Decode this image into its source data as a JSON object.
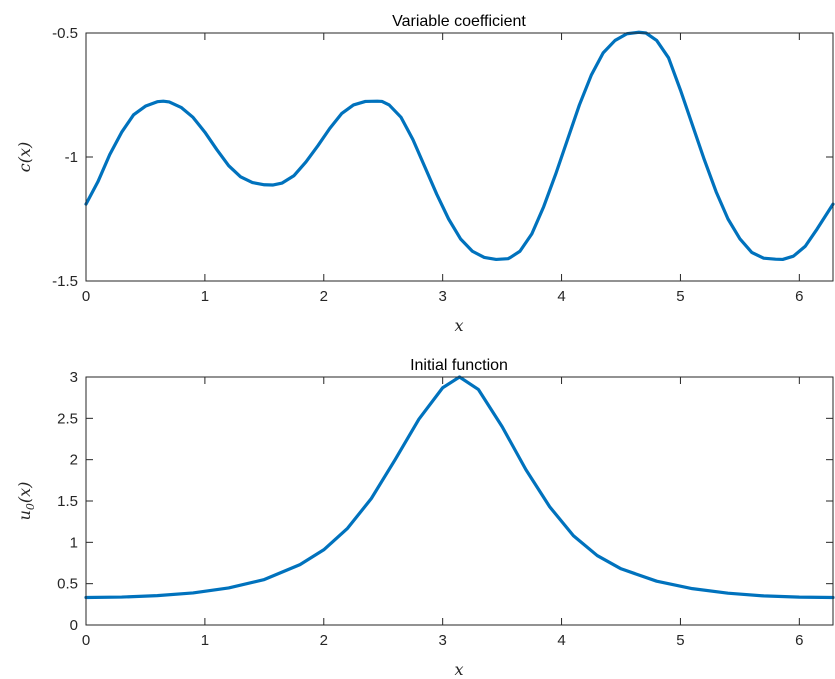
{
  "chart_data": [
    {
      "type": "line",
      "title": "Variable coefficient",
      "xlabel": "x",
      "ylabel": "c(x)",
      "xlim": [
        0,
        6.2832
      ],
      "ylim": [
        -1.5,
        -0.5
      ],
      "xticks": [
        "0",
        "1",
        "2",
        "3",
        "4",
        "5",
        "6"
      ],
      "yticks": [
        "-1.5",
        "-1",
        "-0.5"
      ],
      "grid": false,
      "series": [
        {
          "color": "#0072bd",
          "x": [
            0,
            0.1,
            0.2,
            0.3,
            0.4,
            0.5,
            0.6,
            0.65,
            0.7,
            0.8,
            0.9,
            1.0,
            1.1,
            1.2,
            1.3,
            1.4,
            1.5,
            1.57,
            1.65,
            1.75,
            1.85,
            1.95,
            2.05,
            2.15,
            2.25,
            2.35,
            2.45,
            2.49,
            2.55,
            2.65,
            2.75,
            2.85,
            2.95,
            3.05,
            3.15,
            3.25,
            3.35,
            3.45,
            3.55,
            3.57,
            3.65,
            3.75,
            3.85,
            3.95,
            4.05,
            4.15,
            4.25,
            4.35,
            4.45,
            4.55,
            4.65,
            4.71,
            4.8,
            4.9,
            5.0,
            5.1,
            5.2,
            5.3,
            5.4,
            5.5,
            5.6,
            5.7,
            5.8,
            5.86,
            5.95,
            6.05,
            6.15,
            6.2832
          ],
          "y": [
            -1.19,
            -1.1,
            -0.99,
            -0.9,
            -0.83,
            -0.795,
            -0.777,
            -0.775,
            -0.778,
            -0.8,
            -0.84,
            -0.9,
            -0.97,
            -1.035,
            -1.08,
            -1.103,
            -1.112,
            -1.113,
            -1.105,
            -1.075,
            -1.02,
            -0.955,
            -0.885,
            -0.825,
            -0.79,
            -0.776,
            -0.775,
            -0.776,
            -0.79,
            -0.84,
            -0.93,
            -1.04,
            -1.15,
            -1.25,
            -1.33,
            -1.38,
            -1.405,
            -1.413,
            -1.41,
            -1.405,
            -1.38,
            -1.31,
            -1.2,
            -1.07,
            -0.93,
            -0.79,
            -0.67,
            -0.58,
            -0.53,
            -0.503,
            -0.497,
            -0.5,
            -0.53,
            -0.6,
            -0.73,
            -0.87,
            -1.01,
            -1.14,
            -1.25,
            -1.33,
            -1.385,
            -1.408,
            -1.412,
            -1.413,
            -1.4,
            -1.36,
            -1.29,
            -1.19
          ]
        }
      ]
    },
    {
      "type": "line",
      "title": "Initial function",
      "xlabel": "x",
      "ylabel": "u0(x)",
      "xlim": [
        0,
        6.2832
      ],
      "ylim": [
        0,
        3
      ],
      "xticks": [
        "0",
        "1",
        "2",
        "3",
        "4",
        "5",
        "6"
      ],
      "yticks": [
        "0",
        "0.5",
        "1",
        "1.5",
        "2",
        "2.5",
        "3"
      ],
      "grid": false,
      "series": [
        {
          "color": "#0072bd",
          "x": [
            0,
            0.3,
            0.6,
            0.9,
            1.2,
            1.5,
            1.8,
            2.0,
            2.2,
            2.4,
            2.6,
            2.8,
            3.0,
            3.1416,
            3.3,
            3.5,
            3.7,
            3.9,
            4.1,
            4.3,
            4.5,
            4.8,
            5.1,
            5.4,
            5.7,
            6.0,
            6.2832
          ],
          "y": [
            0.333,
            0.338,
            0.355,
            0.388,
            0.448,
            0.55,
            0.73,
            0.91,
            1.17,
            1.53,
            2.0,
            2.49,
            2.87,
            3.0,
            2.85,
            2.4,
            1.88,
            1.43,
            1.08,
            0.84,
            0.68,
            0.53,
            0.44,
            0.385,
            0.352,
            0.337,
            0.333
          ]
        }
      ]
    }
  ]
}
